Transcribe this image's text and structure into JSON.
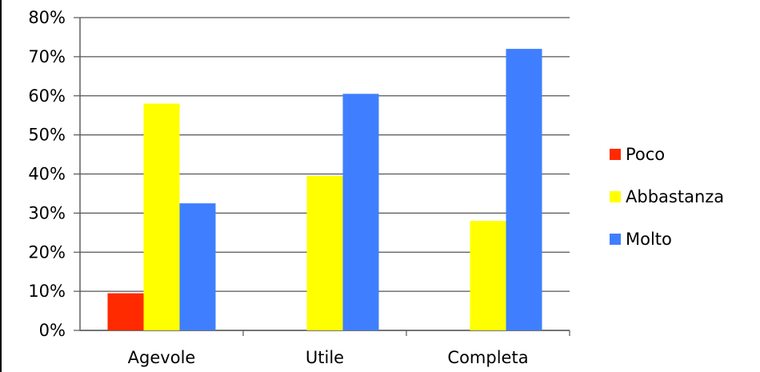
{
  "chart_data": {
    "type": "bar",
    "categories": [
      "Agevole",
      "Utile",
      "Completa"
    ],
    "series": [
      {
        "name": "Poco",
        "color": "#ff2a00",
        "values": [
          9.5,
          0,
          0
        ]
      },
      {
        "name": "Abbastanza",
        "color": "#ffff00",
        "values": [
          58,
          39.5,
          28
        ]
      },
      {
        "name": "Molto",
        "color": "#3f7fff",
        "values": [
          32.5,
          60.5,
          72
        ]
      }
    ],
    "y_ticks": [
      "0%",
      "10%",
      "20%",
      "30%",
      "40%",
      "50%",
      "60%",
      "70%",
      "80%"
    ],
    "ylim": [
      0,
      80
    ],
    "grid": true,
    "legend_position": "right"
  }
}
